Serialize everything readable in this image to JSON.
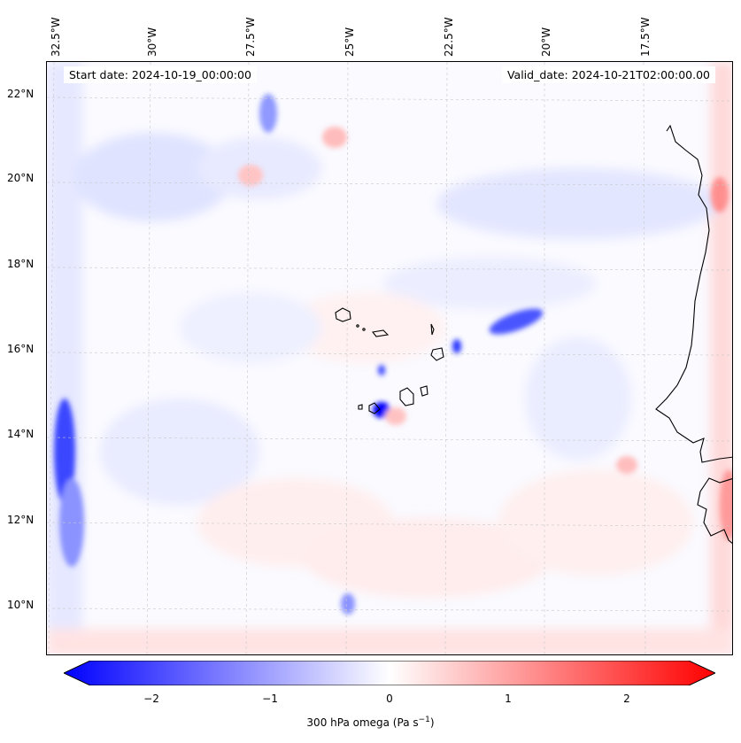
{
  "map": {
    "start_date": "Start date: 2024-10-19_00:00:00",
    "valid_date": "Valid_date: 2024-10-21T02:00:00.00",
    "lon_labels": [
      "32.5°W",
      "30°W",
      "27.5°W",
      "25°W",
      "22.5°W",
      "20°W",
      "17.5°W"
    ],
    "lat_labels": [
      "22°N",
      "20°N",
      "18°N",
      "16°N",
      "14°N",
      "12°N",
      "10°N"
    ]
  },
  "colorbar": {
    "ticks": [
      "−2",
      "−1",
      "0",
      "1",
      "2"
    ],
    "title": "300 hPa omega (Pa s",
    "title_sup": "−1",
    "title_end": ")",
    "vmin": -2.6,
    "vmax": 2.6,
    "low_color": "#0000ff",
    "mid_color": "#ffffff",
    "high_color": "#ff0000"
  }
}
